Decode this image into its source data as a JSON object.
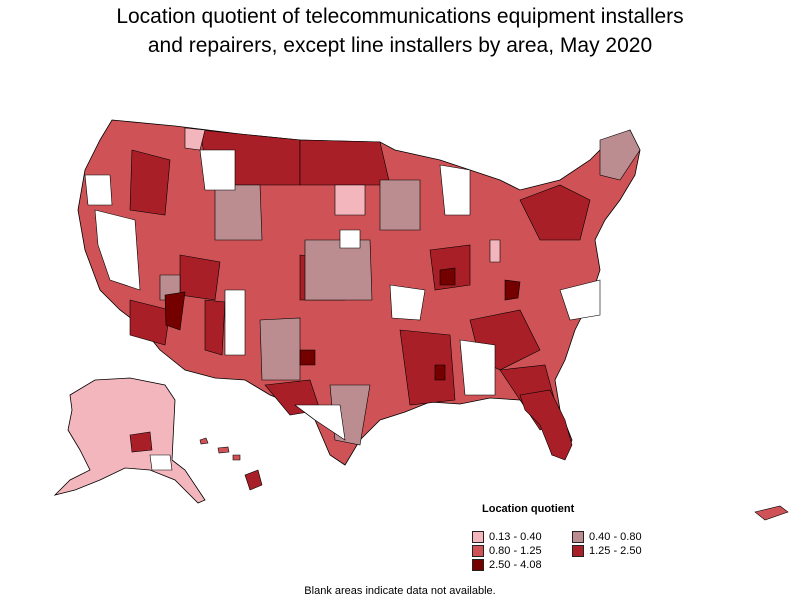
{
  "title_line1": "Location quotient of telecommunications equipment installers",
  "title_line2": "and repairers, except line installers by area, May 2020",
  "legend": {
    "title": "Location quotient",
    "items": [
      {
        "label": "0.13 - 0.40",
        "color": "#f4b6bd"
      },
      {
        "label": "0.40 - 0.80",
        "color": "#bb8c90"
      },
      {
        "label": "0.80 - 1.25",
        "color": "#cf5356"
      },
      {
        "label": "1.25 - 2.50",
        "color": "#a91f27"
      },
      {
        "label": "2.50 - 4.08",
        "color": "#740000"
      }
    ]
  },
  "footnote": "Blank areas indicate data not available.",
  "colors": {
    "outline": "#000000",
    "blank": "#ffffff"
  }
}
